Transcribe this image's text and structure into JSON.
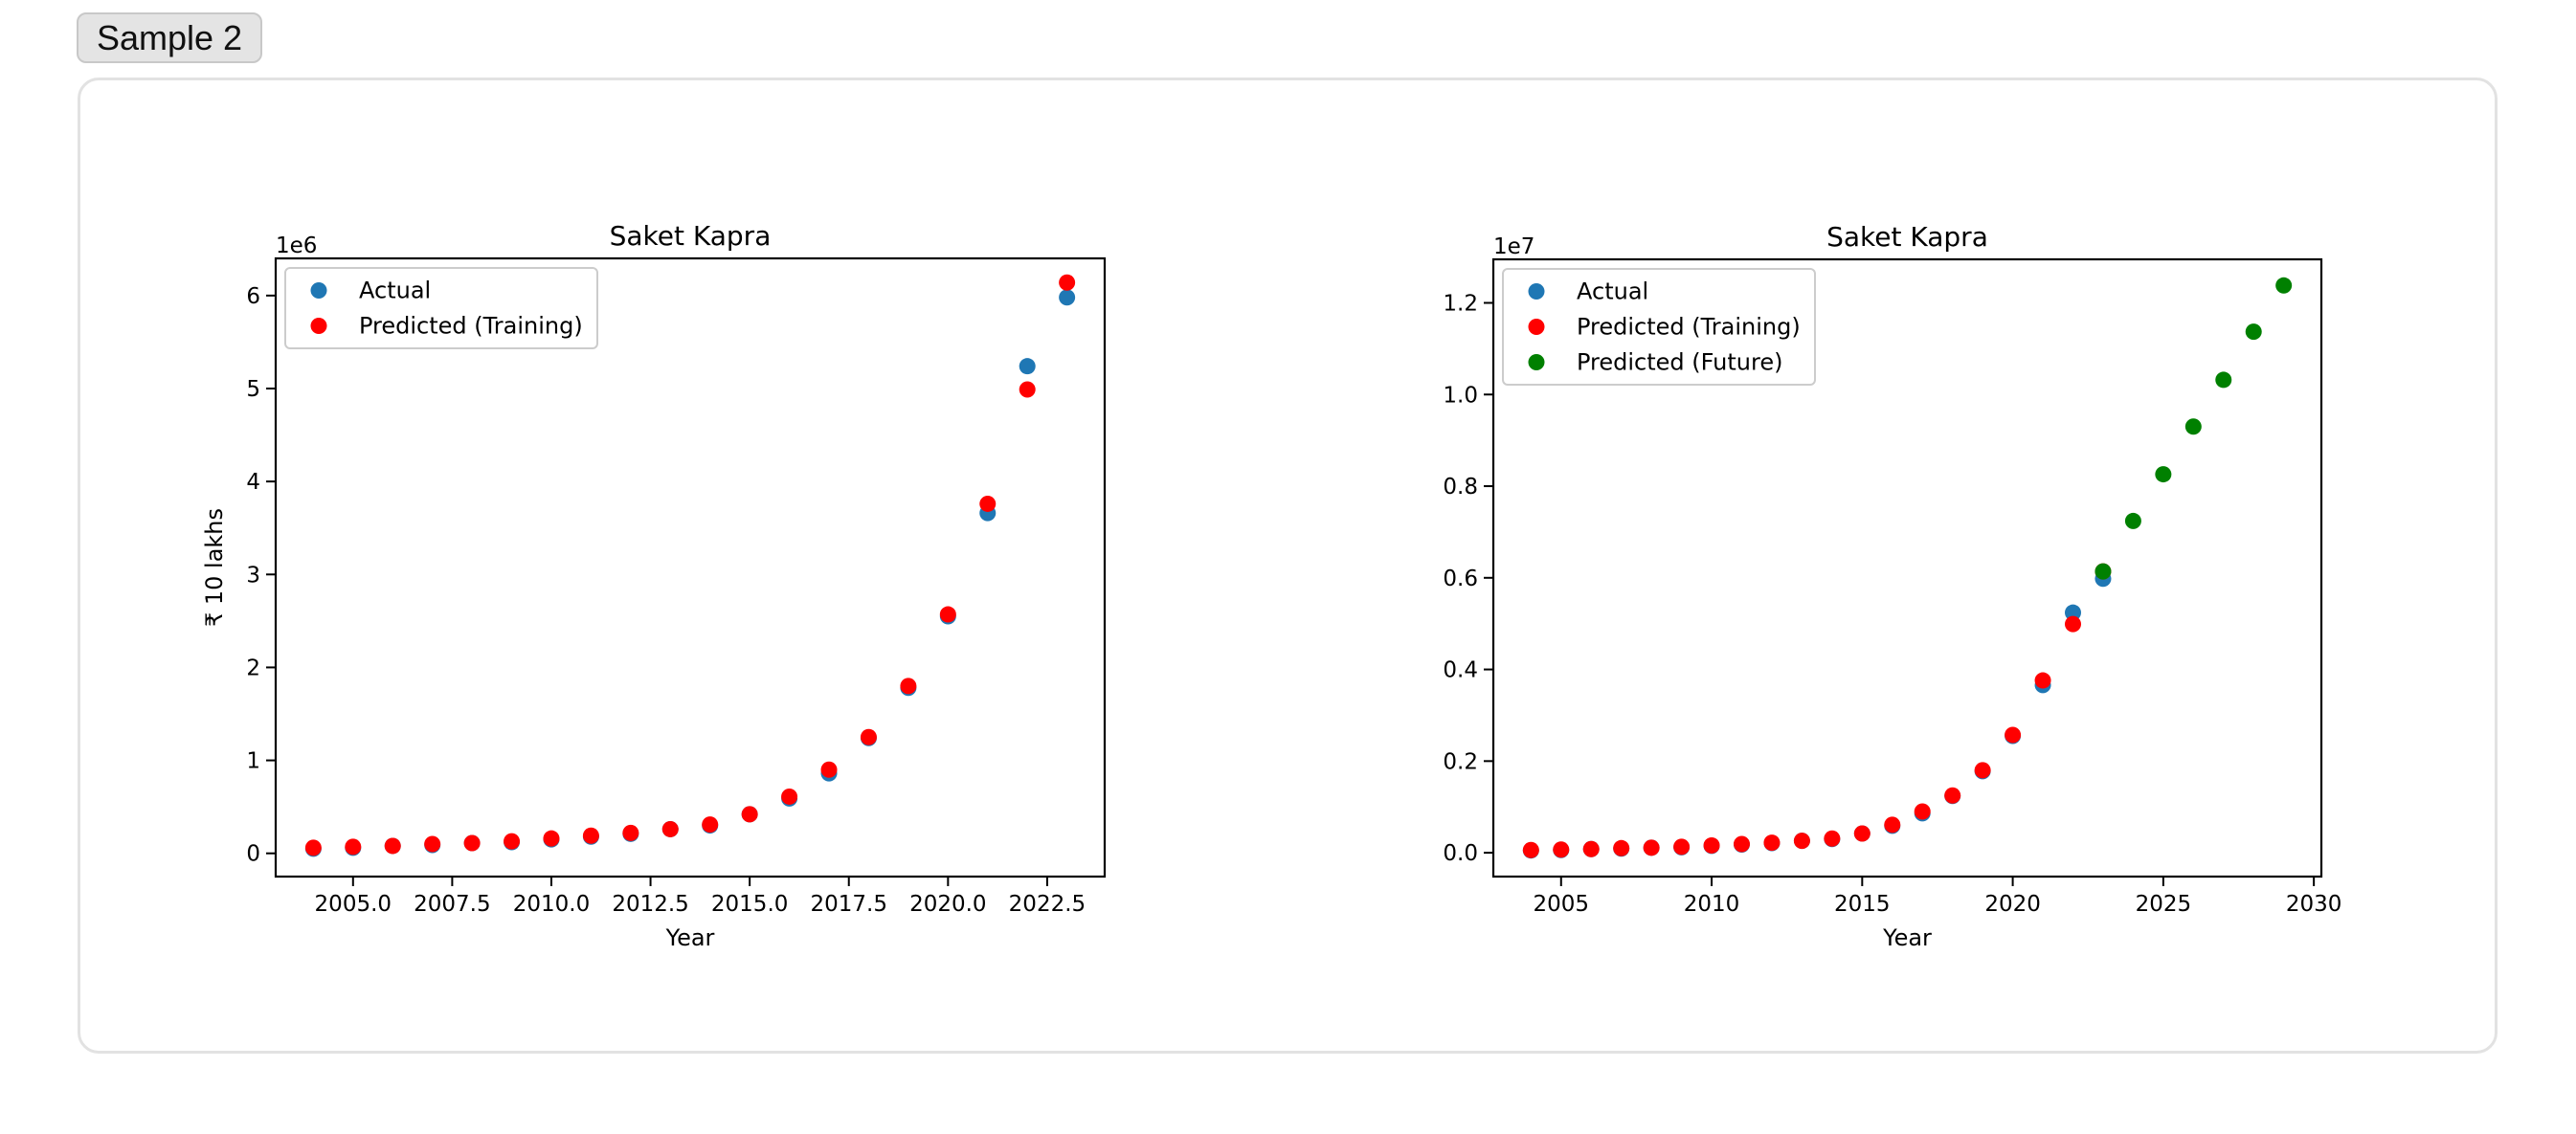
{
  "sample_tab": {
    "label": "Sample 2"
  },
  "chart_data": [
    {
      "type": "scatter",
      "title": "Saket Kapra",
      "xlabel": "Year",
      "ylabel": "₹ 10 lakhs",
      "y_offset_text": "1e6",
      "y_scale": 1000000,
      "xlim": [
        2003.05,
        2023.95
      ],
      "ylim": [
        -250000,
        6400000
      ],
      "xticks": [
        2005.0,
        2007.5,
        2010.0,
        2012.5,
        2015.0,
        2017.5,
        2020.0,
        2022.5
      ],
      "xtick_labels": [
        "2005.0",
        "2007.5",
        "2010.0",
        "2012.5",
        "2015.0",
        "2017.5",
        "2020.0",
        "2022.5"
      ],
      "yticks": [
        0,
        1000000,
        2000000,
        3000000,
        4000000,
        5000000,
        6000000
      ],
      "ytick_labels": [
        "0",
        "1",
        "2",
        "3",
        "4",
        "5",
        "6"
      ],
      "legend": {
        "position": "top-left",
        "entries": [
          "Actual",
          "Predicted (Training)"
        ]
      },
      "grid": false,
      "series": [
        {
          "name": "Actual",
          "color": "#1f77b4",
          "x": [
            2004,
            2005,
            2006,
            2007,
            2008,
            2009,
            2010,
            2011,
            2012,
            2013,
            2014,
            2015,
            2016,
            2017,
            2018,
            2019,
            2020,
            2021,
            2022,
            2023
          ],
          "y": [
            50000,
            60000,
            80000,
            90000,
            110000,
            120000,
            150000,
            180000,
            210000,
            260000,
            300000,
            420000,
            590000,
            860000,
            1240000,
            1780000,
            2550000,
            3660000,
            5240000,
            5980000
          ]
        },
        {
          "name": "Predicted (Training)",
          "color": "#ff0000",
          "x": [
            2004,
            2005,
            2006,
            2007,
            2008,
            2009,
            2010,
            2011,
            2012,
            2013,
            2014,
            2015,
            2016,
            2017,
            2018,
            2019,
            2020,
            2021,
            2022,
            2023
          ],
          "y": [
            60000,
            70000,
            80000,
            100000,
            110000,
            130000,
            160000,
            190000,
            220000,
            260000,
            310000,
            420000,
            610000,
            900000,
            1250000,
            1800000,
            2570000,
            3760000,
            4990000,
            6140000
          ]
        }
      ]
    },
    {
      "type": "scatter",
      "title": "Saket Kapra",
      "xlabel": "Year",
      "ylabel": "",
      "y_offset_text": "1e7",
      "y_scale": 10000000,
      "xlim": [
        2002.75,
        2030.25
      ],
      "ylim": [
        -520000,
        12950000
      ],
      "xticks": [
        2005,
        2010,
        2015,
        2020,
        2025,
        2030
      ],
      "xtick_labels": [
        "2005",
        "2010",
        "2015",
        "2020",
        "2025",
        "2030"
      ],
      "yticks": [
        0,
        2000000,
        4000000,
        6000000,
        8000000,
        10000000,
        12000000
      ],
      "ytick_labels": [
        "0.0",
        "0.2",
        "0.4",
        "0.6",
        "0.8",
        "1.0",
        "1.2"
      ],
      "legend": {
        "position": "top-left",
        "entries": [
          "Actual",
          "Predicted (Training)",
          "Predicted (Future)"
        ]
      },
      "grid": false,
      "series": [
        {
          "name": "Actual",
          "color": "#1f77b4",
          "x": [
            2004,
            2005,
            2006,
            2007,
            2008,
            2009,
            2010,
            2011,
            2012,
            2013,
            2014,
            2015,
            2016,
            2017,
            2018,
            2019,
            2020,
            2021,
            2022,
            2023
          ],
          "y": [
            50000,
            60000,
            80000,
            90000,
            110000,
            120000,
            150000,
            180000,
            210000,
            260000,
            300000,
            420000,
            590000,
            860000,
            1240000,
            1780000,
            2550000,
            3660000,
            5240000,
            5980000
          ]
        },
        {
          "name": "Predicted (Training)",
          "color": "#ff0000",
          "x": [
            2004,
            2005,
            2006,
            2007,
            2008,
            2009,
            2010,
            2011,
            2012,
            2013,
            2014,
            2015,
            2016,
            2017,
            2018,
            2019,
            2020,
            2021,
            2022,
            2023
          ],
          "y": [
            60000,
            70000,
            80000,
            100000,
            110000,
            130000,
            160000,
            190000,
            220000,
            260000,
            310000,
            420000,
            610000,
            900000,
            1250000,
            1800000,
            2570000,
            3760000,
            4990000,
            6140000
          ]
        },
        {
          "name": "Predicted (Future)",
          "color": "#008000",
          "x": [
            2023,
            2024,
            2025,
            2026,
            2027,
            2028,
            2029
          ],
          "y": [
            6140000,
            7240000,
            8260000,
            9300000,
            10320000,
            11370000,
            12380000
          ]
        }
      ]
    }
  ]
}
